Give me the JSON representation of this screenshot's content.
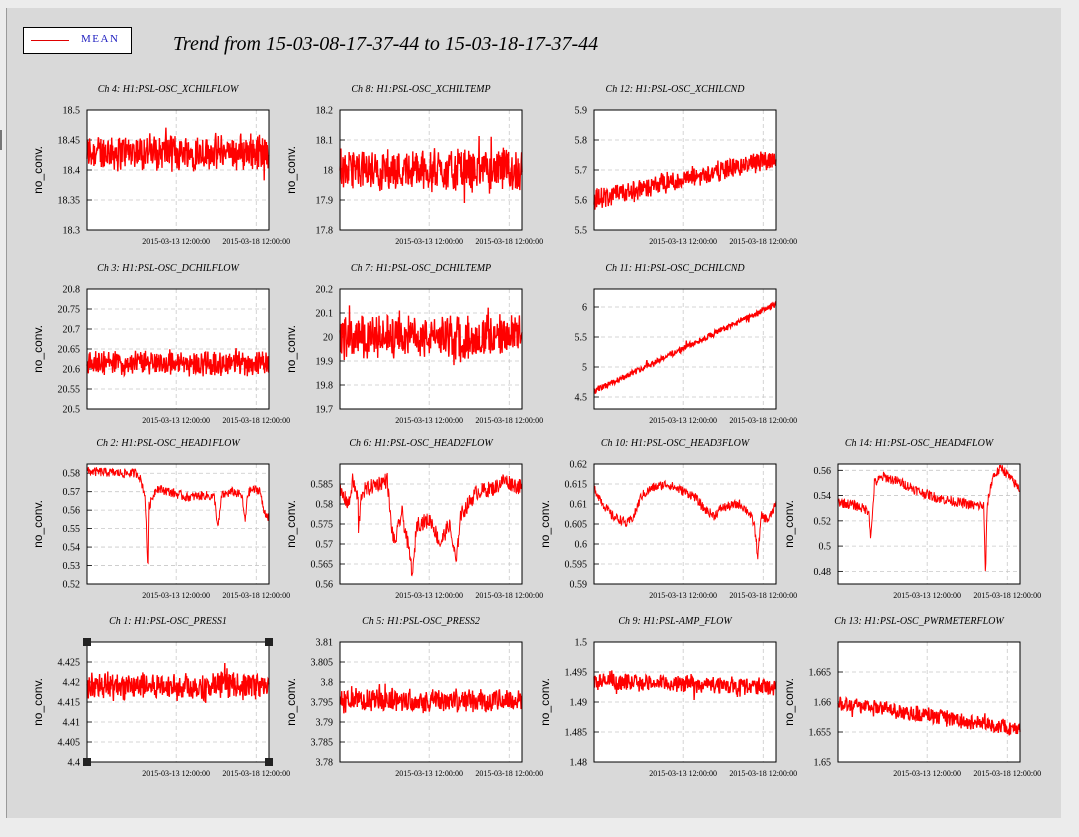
{
  "header": {
    "title": "Trend from 15-03-08-17-37-44 to 15-03-18-17-37-44",
    "legend_label": "MEAN",
    "series_color": "#ff0000"
  },
  "chart_data": [
    {
      "type": "line",
      "title": "Ch 4: H1:PSL-OSC_XCHILFLOW",
      "ylabel": "no_conv.",
      "ylim": [
        18.3,
        18.5
      ],
      "yticks": [
        "18.5",
        "18.45",
        "18.4",
        "18.35",
        "18.3"
      ],
      "xticks": [
        "2015-03-13 12:00:00",
        "2015-03-18 12:00:00"
      ],
      "grid": true,
      "series": [
        {
          "name": "MEAN",
          "mean": 18.43,
          "band": 0.035,
          "trend": 0,
          "x_range": [
            0,
            1
          ]
        }
      ]
    },
    {
      "type": "line",
      "title": "Ch 8: H1:PSL-OSC_XCHILTEMP",
      "ylabel": "no_conv.",
      "ylim": [
        17.8,
        18.2
      ],
      "yticks": [
        "18.2",
        "18.1",
        "18",
        "17.9",
        "17.8"
      ],
      "xticks": [
        "2015-03-13 12:00:00",
        "2015-03-18 12:00:00"
      ],
      "grid": true,
      "series": [
        {
          "name": "MEAN",
          "mean": 18.0,
          "band": 0.08,
          "trend": 0,
          "x_range": [
            0,
            1
          ]
        }
      ]
    },
    {
      "type": "line",
      "title": "Ch 12: H1:PSL-OSC_XCHILCND",
      "ylabel": "",
      "ylim": [
        5.5,
        5.9
      ],
      "yticks": [
        "5.9",
        "5.8",
        "5.7",
        "5.6",
        "5.5"
      ],
      "xticks": [
        "2015-03-13 12:00:00",
        "2015-03-18 12:00:00"
      ],
      "grid": true,
      "series": [
        {
          "name": "MEAN",
          "start": 5.6,
          "end": 5.74,
          "band": 0.04,
          "x_range": [
            0,
            1
          ]
        }
      ]
    },
    {
      "type": "line",
      "title": "Ch 3: H1:PSL-OSC_DCHILFLOW",
      "ylabel": "no_conv.",
      "ylim": [
        20.5,
        20.8
      ],
      "yticks": [
        "20.8",
        "20.75",
        "20.7",
        "20.65",
        "20.6",
        "20.55",
        "20.5"
      ],
      "xticks": [
        "2015-03-13 12:00:00",
        "2015-03-18 12:00:00"
      ],
      "grid": true,
      "series": [
        {
          "name": "MEAN",
          "mean": 20.615,
          "band": 0.035,
          "trend": 0,
          "x_range": [
            0,
            1
          ]
        }
      ]
    },
    {
      "type": "line",
      "title": "Ch 7: H1:PSL-OSC_DCHILTEMP",
      "ylabel": "no_conv.",
      "ylim": [
        19.7,
        20.2
      ],
      "yticks": [
        "20.2",
        "20.1",
        "20",
        "19.9",
        "19.8",
        "19.7"
      ],
      "xticks": [
        "2015-03-13 12:00:00",
        "2015-03-18 12:00:00"
      ],
      "grid": true,
      "series": [
        {
          "name": "MEAN",
          "mean": 20.0,
          "band": 0.1,
          "trend": 0,
          "x_range": [
            0,
            1
          ]
        }
      ]
    },
    {
      "type": "line",
      "title": "Ch 11: H1:PSL-OSC_DCHILCND",
      "ylabel": "",
      "ylim": [
        4.3,
        6.3
      ],
      "yticks": [
        "6",
        "5.5",
        "5",
        "4.5"
      ],
      "ytick_values": [
        6,
        5.5,
        5,
        4.5
      ],
      "xticks": [
        "2015-03-13 12:00:00",
        "2015-03-18 12:00:00"
      ],
      "grid": true,
      "series": [
        {
          "name": "MEAN",
          "start": 4.6,
          "end": 6.05,
          "band": 0.06,
          "x_range": [
            0,
            1
          ]
        }
      ]
    },
    {
      "type": "line",
      "title": "Ch 2: H1:PSL-OSC_HEAD1FLOW",
      "ylabel": "no_conv.",
      "ylim": [
        0.52,
        0.585
      ],
      "yticks": [
        "0.58",
        "0.57",
        "0.56",
        "0.55",
        "0.54",
        "0.53",
        "0.52"
      ],
      "ytick_values": [
        0.58,
        0.57,
        0.56,
        0.55,
        0.54,
        0.53,
        0.52
      ],
      "xticks": [
        "2015-03-13 12:00:00",
        "2015-03-18 12:00:00"
      ],
      "grid": true,
      "series": [
        {
          "name": "MEAN",
          "points": [
            [
              0,
              0.581
            ],
            [
              0.2,
              0.58
            ],
            [
              0.28,
              0.58
            ],
            [
              0.3,
              0.575
            ],
            [
              0.32,
              0.568
            ],
            [
              0.335,
              0.528
            ],
            [
              0.34,
              0.562
            ],
            [
              0.38,
              0.572
            ],
            [
              0.45,
              0.57
            ],
            [
              0.55,
              0.567
            ],
            [
              0.65,
              0.568
            ],
            [
              0.7,
              0.567
            ],
            [
              0.72,
              0.55
            ],
            [
              0.74,
              0.568
            ],
            [
              0.8,
              0.57
            ],
            [
              0.85,
              0.568
            ],
            [
              0.87,
              0.553
            ],
            [
              0.88,
              0.568
            ],
            [
              0.9,
              0.571
            ],
            [
              0.95,
              0.571
            ],
            [
              0.97,
              0.56
            ],
            [
              1,
              0.556
            ]
          ],
          "noise": 0.0025
        }
      ]
    },
    {
      "type": "line",
      "title": "Ch 6: H1:PSL-OSC_HEAD2FLOW",
      "ylabel": "no_conv.",
      "ylim": [
        0.56,
        0.59
      ],
      "yticks": [
        "0.585",
        "0.58",
        "0.575",
        "0.57",
        "0.565",
        "0.56"
      ],
      "ytick_values": [
        0.585,
        0.58,
        0.575,
        0.57,
        0.565,
        0.56
      ],
      "xticks": [
        "2015-03-13 12:00:00",
        "2015-03-18 12:00:00"
      ],
      "grid": true,
      "series": [
        {
          "name": "MEAN",
          "points": [
            [
              0,
              0.583
            ],
            [
              0.05,
              0.58
            ],
            [
              0.07,
              0.586
            ],
            [
              0.1,
              0.581
            ],
            [
              0.1,
              0.572
            ],
            [
              0.12,
              0.583
            ],
            [
              0.2,
              0.585
            ],
            [
              0.26,
              0.586
            ],
            [
              0.28,
              0.575
            ],
            [
              0.3,
              0.57
            ],
            [
              0.34,
              0.578
            ],
            [
              0.38,
              0.568
            ],
            [
              0.4,
              0.562
            ],
            [
              0.42,
              0.575
            ],
            [
              0.5,
              0.576
            ],
            [
              0.55,
              0.57
            ],
            [
              0.6,
              0.575
            ],
            [
              0.64,
              0.565
            ],
            [
              0.66,
              0.577
            ],
            [
              0.75,
              0.583
            ],
            [
              0.85,
              0.584
            ],
            [
              0.9,
              0.586
            ],
            [
              0.95,
              0.585
            ],
            [
              1,
              0.584
            ]
          ],
          "noise": 0.002
        }
      ]
    },
    {
      "type": "line",
      "title": "Ch 10: H1:PSL-OSC_HEAD3FLOW",
      "ylabel": "no_conv.",
      "ylim": [
        0.59,
        0.62
      ],
      "yticks": [
        "0.62",
        "0.615",
        "0.61",
        "0.605",
        "0.6",
        "0.595",
        "0.59"
      ],
      "ytick_values": [
        0.62,
        0.615,
        0.61,
        0.605,
        0.6,
        0.595,
        0.59
      ],
      "xticks": [
        "2015-03-13 12:00:00",
        "2015-03-18 12:00:00"
      ],
      "grid": true,
      "series": [
        {
          "name": "MEAN",
          "points": [
            [
              0,
              0.614
            ],
            [
              0.05,
              0.61
            ],
            [
              0.1,
              0.607
            ],
            [
              0.15,
              0.606
            ],
            [
              0.18,
              0.605
            ],
            [
              0.22,
              0.607
            ],
            [
              0.26,
              0.612
            ],
            [
              0.32,
              0.614
            ],
            [
              0.4,
              0.615
            ],
            [
              0.5,
              0.613
            ],
            [
              0.55,
              0.612
            ],
            [
              0.6,
              0.609
            ],
            [
              0.66,
              0.607
            ],
            [
              0.7,
              0.609
            ],
            [
              0.8,
              0.61
            ],
            [
              0.85,
              0.608
            ],
            [
              0.88,
              0.605
            ],
            [
              0.9,
              0.597
            ],
            [
              0.92,
              0.607
            ],
            [
              0.96,
              0.606
            ],
            [
              1,
              0.61
            ]
          ],
          "noise": 0.0012
        }
      ]
    },
    {
      "type": "line",
      "title": "Ch 14: H1:PSL-OSC_HEAD4FLOW",
      "ylabel": "no_conv.",
      "ylim": [
        0.47,
        0.565
      ],
      "yticks": [
        "0.56",
        "0.54",
        "0.52",
        "0.5",
        "0.48"
      ],
      "ytick_values": [
        0.56,
        0.54,
        0.52,
        0.5,
        0.48
      ],
      "xticks": [
        "2015-03-13 12:00:00",
        "2015-03-18 12:00:00"
      ],
      "grid": true,
      "series": [
        {
          "name": "MEAN",
          "points": [
            [
              0,
              0.535
            ],
            [
              0.1,
              0.532
            ],
            [
              0.17,
              0.528
            ],
            [
              0.18,
              0.505
            ],
            [
              0.2,
              0.55
            ],
            [
              0.25,
              0.555
            ],
            [
              0.35,
              0.55
            ],
            [
              0.45,
              0.543
            ],
            [
              0.55,
              0.538
            ],
            [
              0.65,
              0.535
            ],
            [
              0.75,
              0.532
            ],
            [
              0.8,
              0.532
            ],
            [
              0.81,
              0.478
            ],
            [
              0.82,
              0.533
            ],
            [
              0.85,
              0.555
            ],
            [
              0.9,
              0.562
            ],
            [
              0.95,
              0.553
            ],
            [
              1,
              0.545
            ]
          ],
          "noise": 0.004
        }
      ]
    },
    {
      "type": "line",
      "title": "Ch 1: H1:PSL-OSC_PRESS1",
      "ylabel": "no_conv.",
      "ylim": [
        4.4,
        4.43
      ],
      "yticks": [
        "4.425",
        "4.42",
        "4.415",
        "4.41",
        "4.405",
        "4.4"
      ],
      "ytick_values": [
        4.425,
        4.42,
        4.415,
        4.41,
        4.405,
        4.4
      ],
      "xticks": [
        "2015-03-13 12:00:00",
        "2015-03-18 12:00:00"
      ],
      "grid": true,
      "selected": true,
      "series": [
        {
          "name": "MEAN",
          "mean": 4.419,
          "band": 0.004,
          "trend": 0,
          "x_range": [
            0,
            1
          ]
        }
      ]
    },
    {
      "type": "line",
      "title": "Ch 5: H1:PSL-OSC_PRESS2",
      "ylabel": "no_conv.",
      "ylim": [
        3.78,
        3.81
      ],
      "yticks": [
        "3.81",
        "3.805",
        "3.8",
        "3.795",
        "3.79",
        "3.785",
        "3.78"
      ],
      "ytick_values": [
        3.81,
        3.805,
        3.8,
        3.795,
        3.79,
        3.785,
        3.78
      ],
      "xticks": [
        "2015-03-13 12:00:00",
        "2015-03-18 12:00:00"
      ],
      "grid": true,
      "series": [
        {
          "name": "MEAN",
          "mean": 3.7955,
          "band": 0.0035,
          "trend": 0,
          "x_range": [
            0,
            1
          ]
        }
      ]
    },
    {
      "type": "line",
      "title": "Ch 9: H1:PSL-AMP_FLOW",
      "ylabel": "no_conv.",
      "ylim": [
        1.48,
        1.5
      ],
      "yticks": [
        "1.5",
        "1.495",
        "1.49",
        "1.485",
        "1.48"
      ],
      "ytick_values": [
        1.5,
        1.495,
        1.49,
        1.485,
        1.48
      ],
      "xticks": [
        "2015-03-13 12:00:00",
        "2015-03-18 12:00:00"
      ],
      "grid": true,
      "series": [
        {
          "name": "MEAN",
          "start": 1.4935,
          "end": 1.4925,
          "band": 0.0016,
          "x_range": [
            0,
            1
          ]
        }
      ]
    },
    {
      "type": "line",
      "title": "Ch 13: H1:PSL-OSC_PWRMETERFLOW",
      "ylabel": "no_conv.",
      "ylim": [
        1.65,
        1.67
      ],
      "yticks": [
        "1.665",
        "1.66",
        "1.655",
        "1.65"
      ],
      "ytick_values": [
        1.665,
        1.66,
        1.655,
        1.65
      ],
      "xticks": [
        "2015-03-13 12:00:00",
        "2015-03-18 12:00:00"
      ],
      "grid": true,
      "series": [
        {
          "name": "MEAN",
          "start": 1.66,
          "end": 1.6555,
          "band": 0.0015,
          "x_range": [
            0,
            1
          ]
        }
      ]
    }
  ]
}
